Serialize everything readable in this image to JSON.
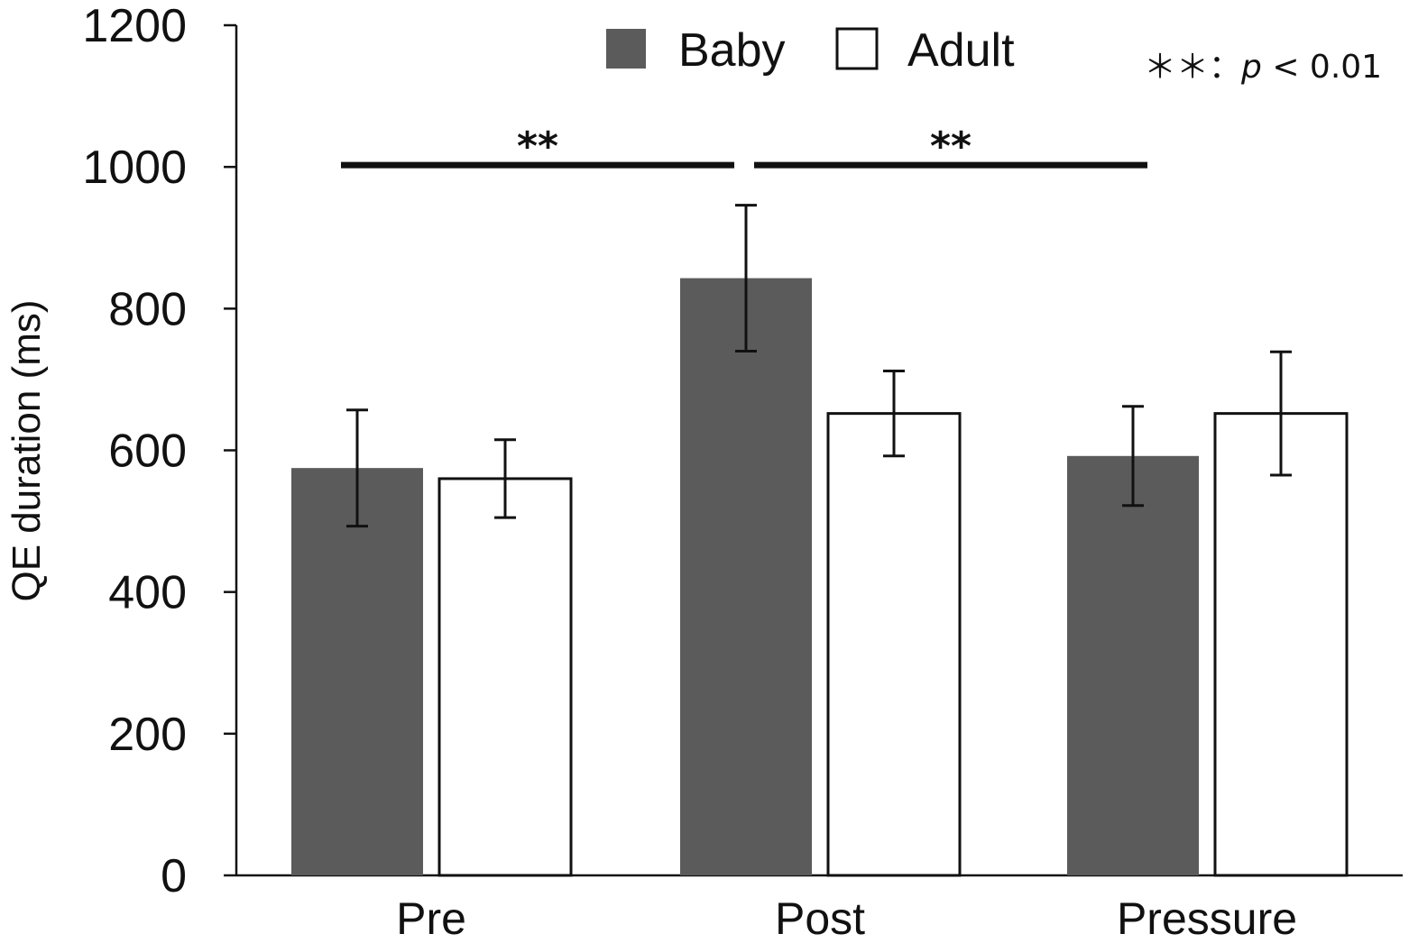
{
  "chart_data": {
    "type": "bar",
    "title": "",
    "xlabel": "",
    "ylabel": "QE duration (ms)",
    "ylim": [
      0,
      1200
    ],
    "yticks": [
      "0",
      "200",
      "400",
      "600",
      "800",
      "1000",
      "1200"
    ],
    "categories": [
      "Pre",
      "Post",
      "Pressure"
    ],
    "series": [
      {
        "name": "Baby",
        "color": "#5b5b5b",
        "values": [
          575,
          843,
          592
        ],
        "errors": [
          82,
          103,
          70
        ]
      },
      {
        "name": "Adult",
        "color": "#ffffff",
        "values": [
          560,
          652,
          652
        ],
        "errors": [
          55,
          60,
          87
        ]
      }
    ],
    "grid": false,
    "legend": "top-center",
    "significance": [
      {
        "label": "**",
        "from_category": "Pre",
        "to_category": "Post",
        "level": 1000
      },
      {
        "label": "**",
        "from_category": "Post",
        "to_category": "Pressure",
        "level": 1000
      }
    ],
    "note": {
      "stars": "＊＊：",
      "p": "p",
      "rest": " < 0.01"
    }
  }
}
